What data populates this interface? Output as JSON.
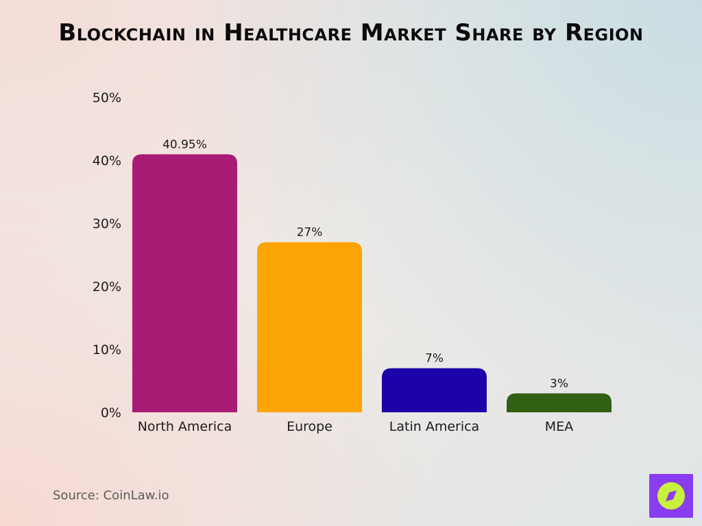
{
  "chart_data": {
    "type": "bar",
    "title": "Blockchain in Healthcare Market Share by Region",
    "categories": [
      "North America",
      "Europe",
      "Latin America",
      "MEA"
    ],
    "values": [
      40.95,
      27,
      7,
      3
    ],
    "value_labels": [
      "40.95%",
      "27%",
      "7%",
      "3%"
    ],
    "colors": [
      "#a81c76",
      "#fba403",
      "#1b03a8",
      "#326012"
    ],
    "yticks": [
      "0%",
      "10%",
      "20%",
      "30%",
      "40%",
      "50%"
    ],
    "ylim": [
      0,
      50
    ],
    "grid": false,
    "legend": "none"
  },
  "source": "Source: CoinLaw.io",
  "logo": {
    "icon": "compass-icon",
    "bg_color": "#8a3cf0",
    "circle_color": "#c8f03c"
  }
}
